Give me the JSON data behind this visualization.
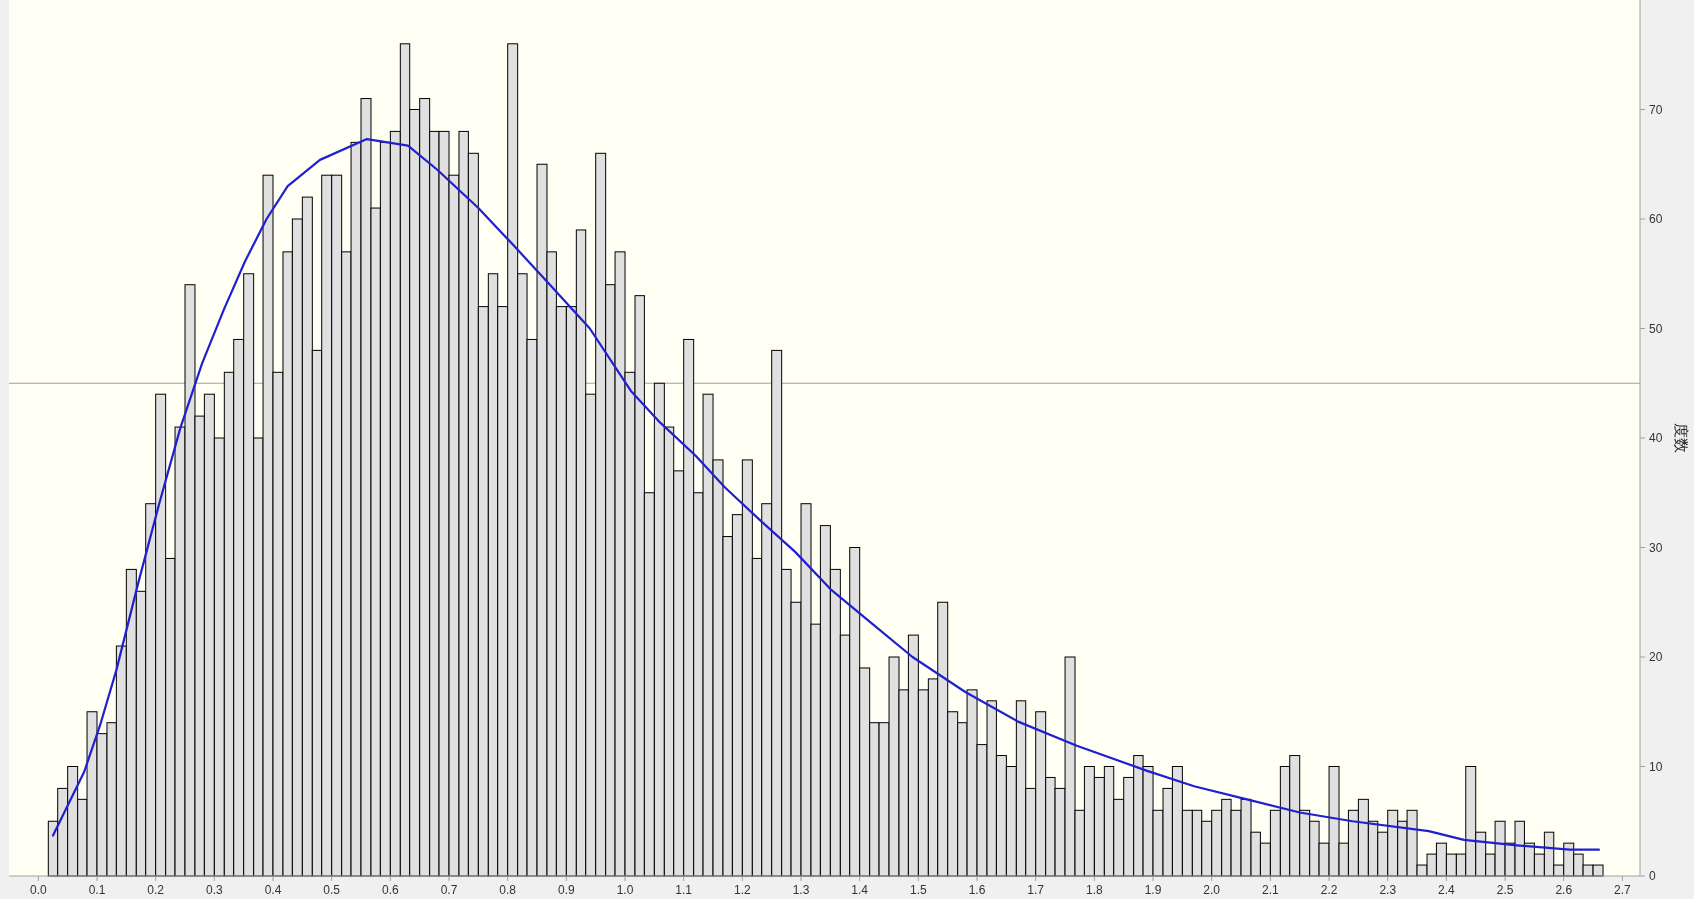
{
  "chart_data": {
    "type": "histogram",
    "ylabel": "度数",
    "xlim": [
      -0.05,
      2.73
    ],
    "ylim": [
      0,
      80
    ],
    "xticks": [
      {
        "value": 0,
        "label": "0.0"
      },
      0.1,
      0.2,
      0.3,
      0.4,
      0.5,
      0.6,
      0.7,
      0.8,
      0.9,
      {
        "value": 1,
        "label": "1.0"
      },
      1.1,
      1.2,
      1.3,
      1.4,
      1.5,
      1.6,
      1.7,
      1.8,
      1.9,
      {
        "value": 2,
        "label": "2.0"
      },
      2.1,
      2.2,
      2.3,
      2.4,
      2.5,
      2.6,
      2.7
    ],
    "yticks": [
      0,
      10,
      20,
      30,
      40,
      50,
      60,
      70
    ],
    "ref_lines": [
      {
        "axis": "y",
        "value": 45,
        "color": "#a0a0a0"
      }
    ],
    "series": [
      {
        "color": "#e0e0e0",
        "bins": [
          0.017,
          0.033,
          0.05,
          0.067,
          0.083,
          0.1,
          0.117,
          0.133,
          0.15,
          0.167,
          0.183,
          0.2,
          0.217,
          0.233,
          0.25,
          0.267,
          0.283,
          0.3,
          0.317,
          0.333,
          0.35,
          0.367,
          0.383,
          0.4,
          0.417,
          0.433,
          0.45,
          0.467,
          0.483,
          0.5,
          0.517,
          0.533,
          0.55,
          0.567,
          0.583,
          0.6,
          0.617,
          0.633,
          0.65,
          0.667,
          0.683,
          0.7,
          0.717,
          0.733,
          0.75,
          0.767,
          0.783,
          0.8,
          0.817,
          0.833,
          0.85,
          0.867,
          0.883,
          0.9,
          0.917,
          0.933,
          0.95,
          0.967,
          0.983,
          1.0,
          1.017,
          1.033,
          1.05,
          1.067,
          1.083,
          1.1,
          1.117,
          1.133,
          1.15,
          1.167,
          1.183,
          1.2,
          1.217,
          1.233,
          1.25,
          1.267,
          1.283,
          1.3,
          1.317,
          1.333,
          1.35,
          1.367,
          1.383,
          1.4,
          1.417,
          1.433,
          1.45,
          1.467,
          1.483,
          1.5,
          1.517,
          1.533,
          1.55,
          1.567,
          1.583,
          1.6,
          1.617,
          1.633,
          1.65,
          1.667,
          1.683,
          1.7,
          1.717,
          1.733,
          1.75,
          1.767,
          1.783,
          1.8,
          1.817,
          1.833,
          1.85,
          1.867,
          1.883,
          1.9,
          1.917,
          1.933,
          1.95,
          1.967,
          1.983,
          2.0,
          2.017,
          2.033,
          2.05,
          2.067,
          2.083,
          2.1,
          2.117,
          2.133,
          2.15,
          2.167,
          2.183,
          2.2,
          2.217,
          2.233,
          2.25,
          2.267,
          2.283,
          2.3,
          2.317,
          2.333,
          2.35,
          2.367,
          2.383,
          2.4,
          2.417,
          2.433,
          2.45,
          2.467,
          2.483,
          2.5,
          2.517,
          2.533,
          2.55,
          2.567,
          2.583,
          2.6,
          2.617,
          2.633,
          2.65,
          2.667
        ],
        "values": [
          5,
          8,
          10,
          7,
          15,
          13,
          14,
          21,
          28,
          26,
          34,
          44,
          29,
          41,
          54,
          42,
          44,
          40,
          46,
          49,
          55,
          40,
          64,
          46,
          57,
          60,
          62,
          48,
          64,
          64,
          57,
          67,
          71,
          61,
          67,
          68,
          76,
          70,
          71,
          68,
          68,
          64,
          68,
          66,
          52,
          55,
          52,
          76,
          55,
          49,
          65,
          57,
          52,
          52,
          59,
          44,
          66,
          54,
          57,
          46,
          53,
          35,
          45,
          41,
          37,
          49,
          35,
          44,
          38,
          31,
          33,
          38,
          29,
          34,
          48,
          28,
          25,
          34,
          23,
          32,
          28,
          22,
          30,
          19,
          14,
          14,
          20,
          17,
          22,
          17,
          18,
          25,
          15,
          14,
          17,
          12,
          16,
          11,
          10,
          16,
          8,
          15,
          9,
          8,
          20,
          6,
          10,
          9,
          10,
          7,
          9,
          11,
          10,
          6,
          8,
          10,
          6,
          6,
          5,
          6,
          7,
          6,
          7,
          4,
          3,
          6,
          10,
          11,
          6,
          5,
          3,
          10,
          3,
          6,
          7,
          5,
          4,
          6,
          5,
          6,
          1,
          2,
          3,
          2,
          2,
          10,
          4,
          2,
          5,
          3,
          5,
          3,
          2,
          4,
          1,
          3,
          2,
          1,
          1
        ]
      },
      {
        "type": "line",
        "color": "#2020d0",
        "x": [
          0.025,
          0.078,
          0.106,
          0.133,
          0.17,
          0.206,
          0.242,
          0.279,
          0.316,
          0.352,
          0.389,
          0.425,
          0.48,
          0.56,
          0.63,
          0.68,
          0.75,
          0.81,
          0.87,
          0.94,
          1.01,
          1.06,
          1.12,
          1.17,
          1.23,
          1.29,
          1.35,
          1.42,
          1.49,
          1.58,
          1.67,
          1.77,
          1.89,
          1.97,
          2.06,
          2.15,
          2.24,
          2.37,
          2.43,
          2.52,
          2.61,
          2.66
        ],
        "values": [
          3.7,
          9.5,
          13.9,
          18.8,
          26.7,
          34,
          40.9,
          46.8,
          51.7,
          56.1,
          60,
          63,
          65.4,
          67.3,
          66.7,
          64.5,
          61,
          57.6,
          54.1,
          50,
          44.3,
          41.4,
          38.4,
          35.5,
          32.5,
          29.6,
          26.2,
          23.1,
          20,
          16.8,
          14.1,
          11.9,
          9.6,
          8.2,
          7,
          5.8,
          5,
          4.1,
          3.3,
          2.8,
          2.4,
          2.4
        ]
      }
    ]
  }
}
